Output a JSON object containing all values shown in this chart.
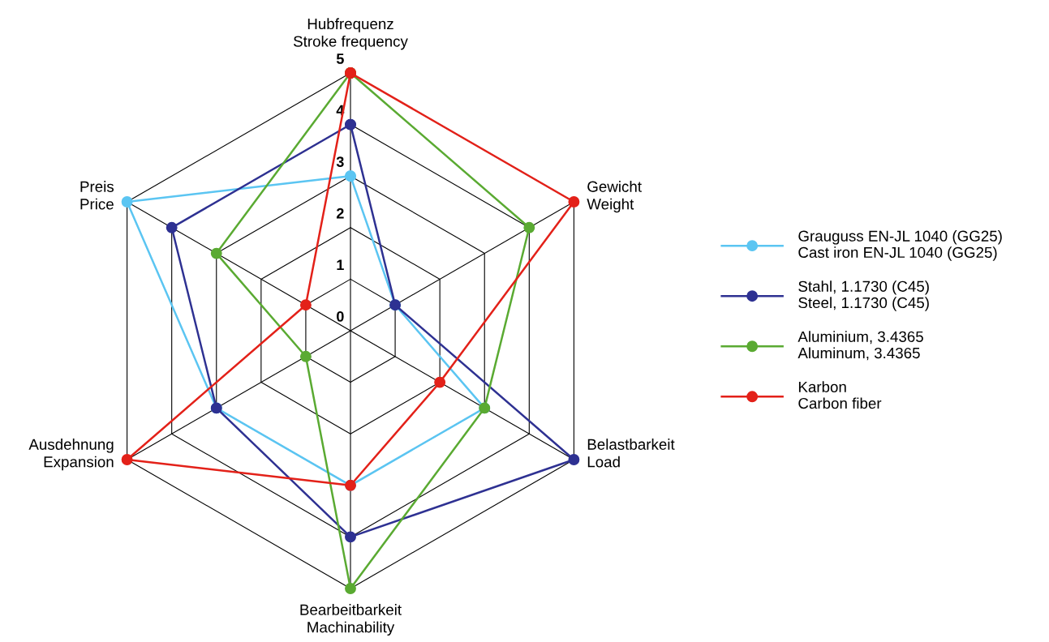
{
  "chart_data": {
    "type": "radar",
    "categories": [
      "Hubfrequenz\nStroke frequency",
      "Gewicht\nWeight",
      "Belastbarkeit\nLoad",
      "Bearbeitbarkeit\nMachinability",
      "Ausdehnung\nExpansion",
      "Preis\nPrice"
    ],
    "ylim": [
      0,
      5
    ],
    "yticks": [
      0,
      1,
      2,
      3,
      4,
      5
    ],
    "grid": true,
    "marker": "circle",
    "legend": "right",
    "series": [
      {
        "name": "Grauguss EN-JL 1040 (GG25)\nCast iron EN-JL 1040 (GG25)",
        "color": "#5bc5f2",
        "values": [
          3,
          1,
          3,
          3,
          3,
          5
        ]
      },
      {
        "name": "Stahl, 1.1730 (C45)\nSteel, 1.1730 (C45)",
        "color": "#2e3192",
        "values": [
          4,
          1,
          5,
          4,
          3,
          4
        ]
      },
      {
        "name": "Aluminium, 3.4365\nAluminum, 3.4365",
        "color": "#5aaa32",
        "values": [
          5,
          4,
          3,
          5,
          1,
          3
        ]
      },
      {
        "name": "Karbon\nCarbon fiber",
        "color": "#e32119",
        "values": [
          5,
          5,
          2,
          3,
          5,
          1
        ]
      }
    ]
  }
}
